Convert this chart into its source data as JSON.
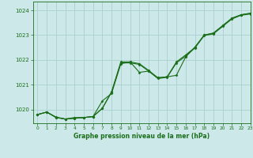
{
  "title": "Graphe pression niveau de la mer (hPa)",
  "bg_color": "#cce8e8",
  "grid_color": "#aad0d0",
  "line_color": "#1a6e1a",
  "marker_color": "#1a6e1a",
  "xlim": [
    -0.5,
    23
  ],
  "ylim": [
    1019.45,
    1024.35
  ],
  "yticks": [
    1020,
    1021,
    1022,
    1023,
    1024
  ],
  "xticks": [
    0,
    1,
    2,
    3,
    4,
    5,
    6,
    7,
    8,
    9,
    10,
    11,
    12,
    13,
    14,
    15,
    16,
    17,
    18,
    19,
    20,
    21,
    22,
    23
  ],
  "series1_x": [
    0,
    1,
    2,
    3,
    4,
    5,
    6,
    7,
    8,
    9,
    10,
    11,
    12,
    13,
    14,
    15,
    16,
    17,
    18,
    19,
    20,
    21,
    22,
    23
  ],
  "series1_y": [
    1019.8,
    1019.9,
    1019.7,
    1019.62,
    1019.68,
    1019.68,
    1019.72,
    1020.35,
    1020.65,
    1021.85,
    1021.92,
    1021.5,
    1021.55,
    1021.28,
    1021.32,
    1021.38,
    1022.12,
    1022.52,
    1023.0,
    1023.08,
    1023.38,
    1023.68,
    1023.82,
    1023.88
  ],
  "series2_x": [
    0,
    1,
    2,
    3,
    4,
    5,
    6,
    7,
    8,
    9,
    10,
    11,
    12,
    13,
    14,
    15,
    16,
    17,
    18,
    19,
    20,
    21,
    22,
    23
  ],
  "series2_y": [
    1019.8,
    1019.9,
    1019.68,
    1019.62,
    1019.65,
    1019.68,
    1019.72,
    1020.05,
    1020.72,
    1021.92,
    1021.92,
    1021.85,
    1021.58,
    1021.28,
    1021.32,
    1021.92,
    1022.2,
    1022.5,
    1023.0,
    1023.08,
    1023.38,
    1023.68,
    1023.82,
    1023.88
  ],
  "series3_x": [
    0,
    1,
    2,
    3,
    4,
    5,
    6,
    7,
    8,
    9,
    10,
    11,
    12,
    13,
    14,
    15,
    16,
    17,
    18,
    19,
    20,
    21,
    22,
    23
  ],
  "series3_y": [
    1019.8,
    1019.9,
    1019.68,
    1019.62,
    1019.65,
    1019.68,
    1019.72,
    1020.05,
    1020.7,
    1021.88,
    1021.88,
    1021.82,
    1021.55,
    1021.25,
    1021.3,
    1021.88,
    1022.15,
    1022.48,
    1022.98,
    1023.05,
    1023.35,
    1023.65,
    1023.8,
    1023.85
  ]
}
